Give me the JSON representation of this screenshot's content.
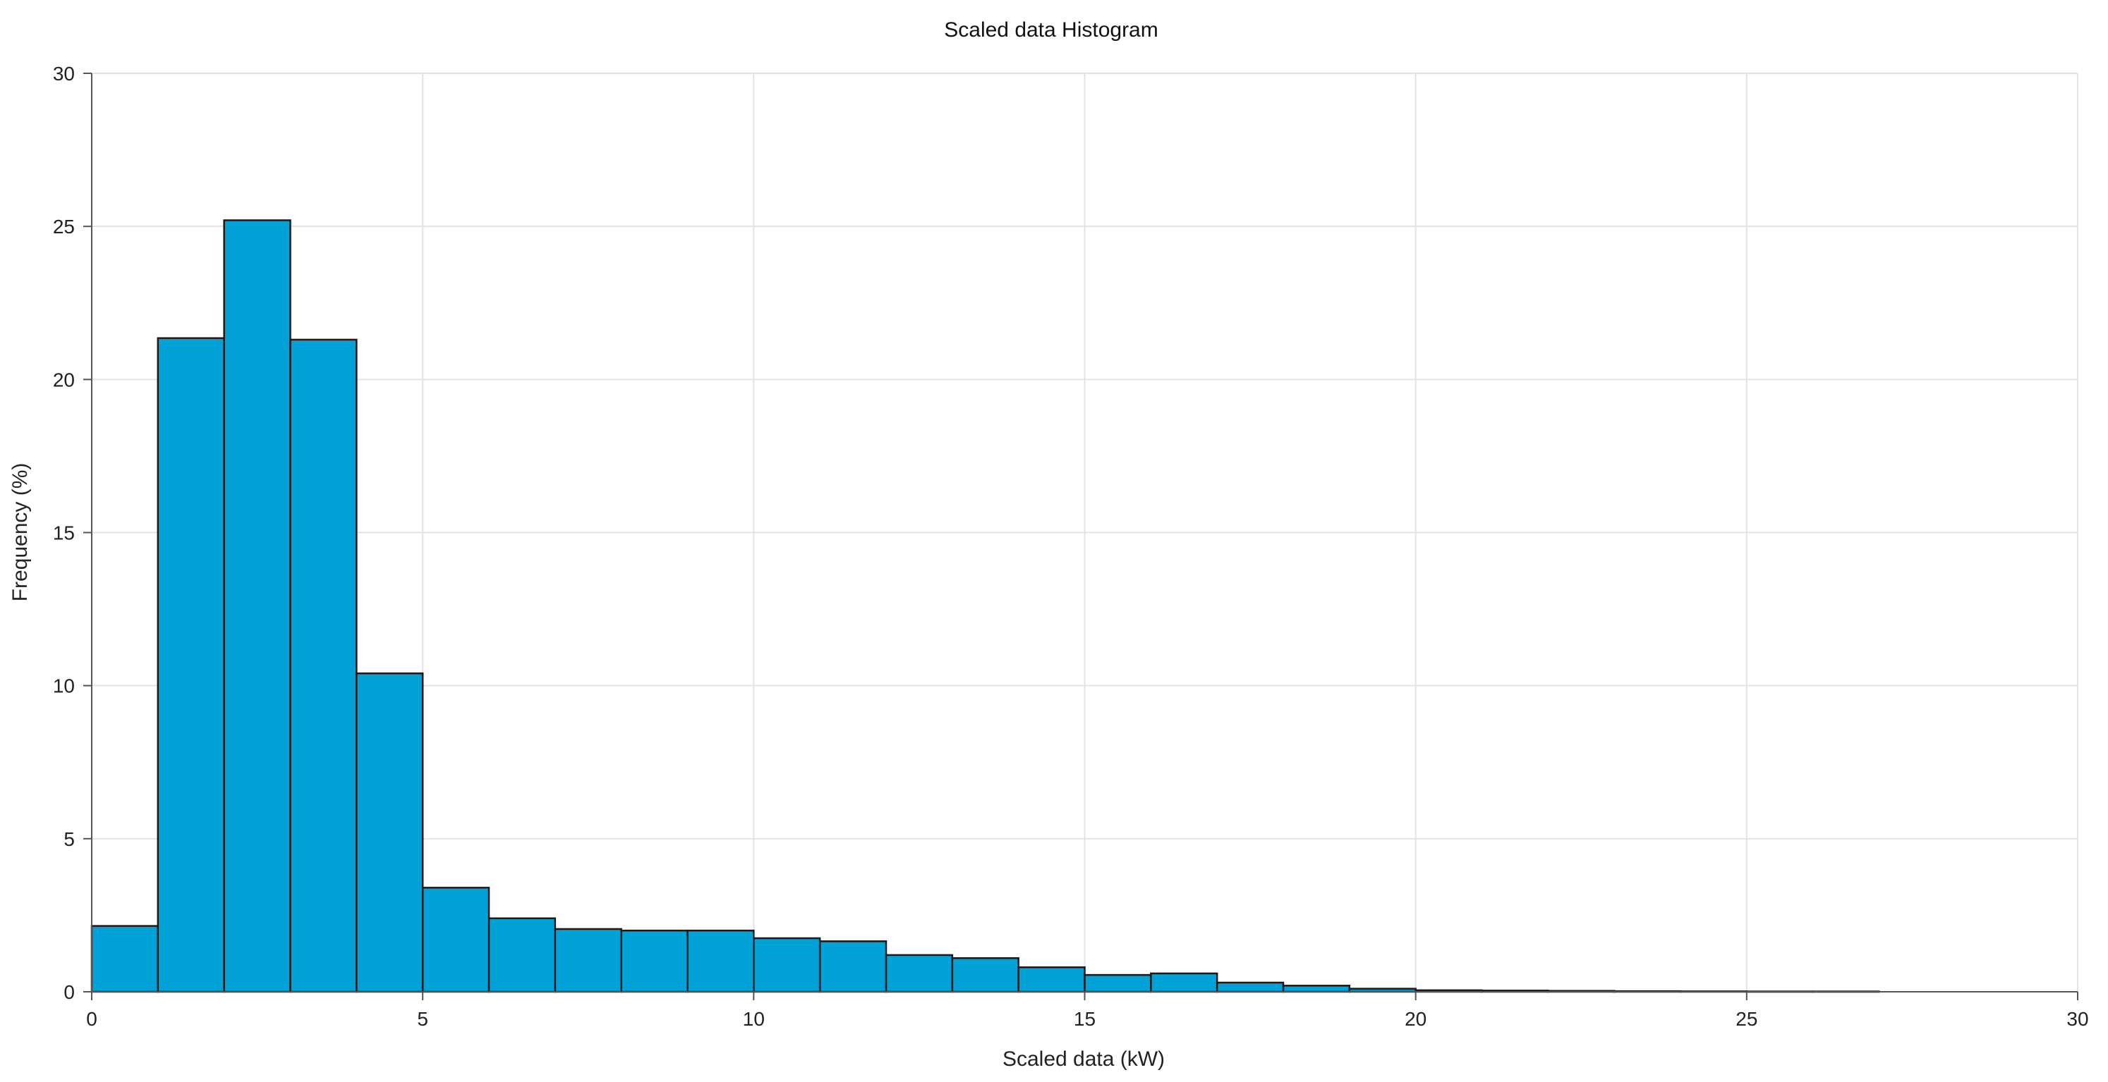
{
  "chart_data": {
    "type": "bar",
    "title": "Scaled data Histogram",
    "xlabel": "Scaled data (kW)",
    "ylabel": "Frequency (%)",
    "xlim": [
      0,
      30
    ],
    "ylim": [
      0,
      30
    ],
    "xticks": [
      0,
      5,
      10,
      15,
      20,
      25,
      30
    ],
    "yticks": [
      0,
      5,
      10,
      15,
      20,
      25,
      30
    ],
    "grid": true,
    "bar_color": "#00A2D8",
    "bar_edge_color": "#1a1a1a",
    "bins": [
      {
        "x0": 0,
        "x1": 1,
        "value": 2.15
      },
      {
        "x0": 1,
        "x1": 2,
        "value": 21.35
      },
      {
        "x0": 2,
        "x1": 3,
        "value": 25.2
      },
      {
        "x0": 3,
        "x1": 4,
        "value": 21.3
      },
      {
        "x0": 4,
        "x1": 5,
        "value": 10.4
      },
      {
        "x0": 5,
        "x1": 6,
        "value": 3.4
      },
      {
        "x0": 6,
        "x1": 7,
        "value": 2.4
      },
      {
        "x0": 7,
        "x1": 8,
        "value": 2.05
      },
      {
        "x0": 8,
        "x1": 9,
        "value": 2.0
      },
      {
        "x0": 9,
        "x1": 10,
        "value": 2.0
      },
      {
        "x0": 10,
        "x1": 11,
        "value": 1.75
      },
      {
        "x0": 11,
        "x1": 12,
        "value": 1.65
      },
      {
        "x0": 12,
        "x1": 13,
        "value": 1.2
      },
      {
        "x0": 13,
        "x1": 14,
        "value": 1.1
      },
      {
        "x0": 14,
        "x1": 15,
        "value": 0.8
      },
      {
        "x0": 15,
        "x1": 16,
        "value": 0.55
      },
      {
        "x0": 16,
        "x1": 17,
        "value": 0.6
      },
      {
        "x0": 17,
        "x1": 18,
        "value": 0.3
      },
      {
        "x0": 18,
        "x1": 19,
        "value": 0.2
      },
      {
        "x0": 19,
        "x1": 20,
        "value": 0.1
      },
      {
        "x0": 20,
        "x1": 21,
        "value": 0.05
      },
      {
        "x0": 21,
        "x1": 22,
        "value": 0.04
      },
      {
        "x0": 22,
        "x1": 23,
        "value": 0.03
      },
      {
        "x0": 23,
        "x1": 24,
        "value": 0.02
      },
      {
        "x0": 24,
        "x1": 25,
        "value": 0.015
      },
      {
        "x0": 25,
        "x1": 26,
        "value": 0.01
      },
      {
        "x0": 26,
        "x1": 27,
        "value": 0.01
      }
    ]
  }
}
